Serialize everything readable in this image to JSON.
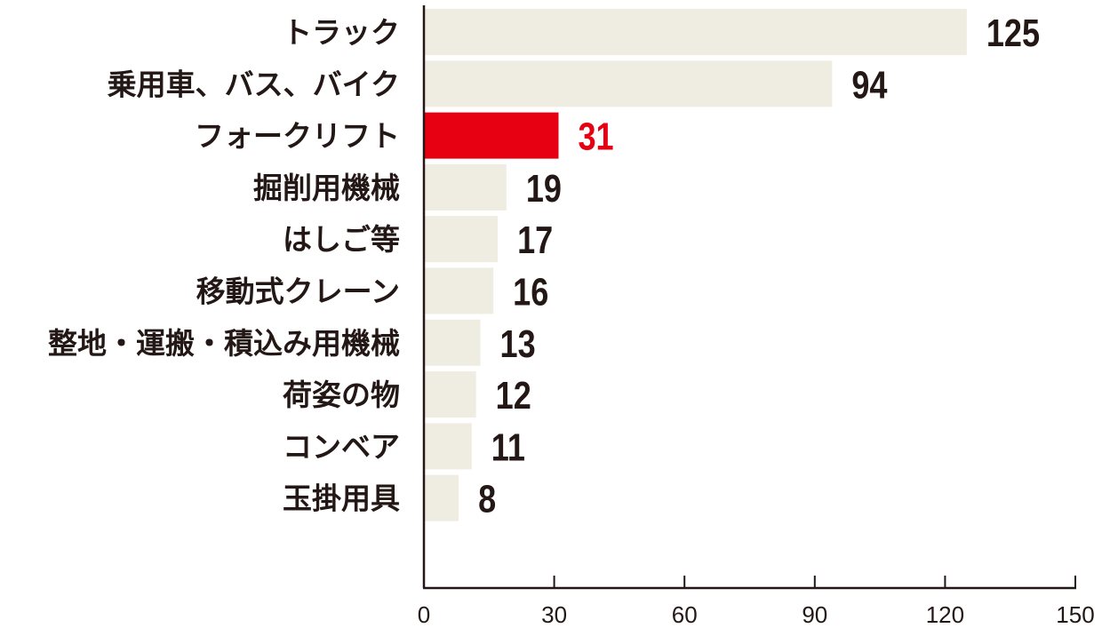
{
  "chart_data": {
    "type": "bar",
    "orientation": "horizontal",
    "categories": [
      "トラック",
      "乗用車、バス、バイク",
      "フォークリフト",
      "掘削用機械",
      "はしご等",
      "移動式クレーン",
      "整地・運搬・積込み用機械",
      "荷姿の物",
      "コンベア",
      "玉掛用具"
    ],
    "values": [
      125,
      94,
      31,
      19,
      17,
      16,
      13,
      12,
      11,
      8
    ],
    "highlight_index": 2,
    "xlim": [
      0,
      150
    ],
    "xticks": [
      0,
      30,
      60,
      90,
      120,
      150
    ],
    "grid": false,
    "colors": {
      "bar": "#efece1",
      "highlight_bar": "#e60012",
      "highlight_text": "#e60012",
      "text": "#231815",
      "axis": "#231815"
    }
  }
}
